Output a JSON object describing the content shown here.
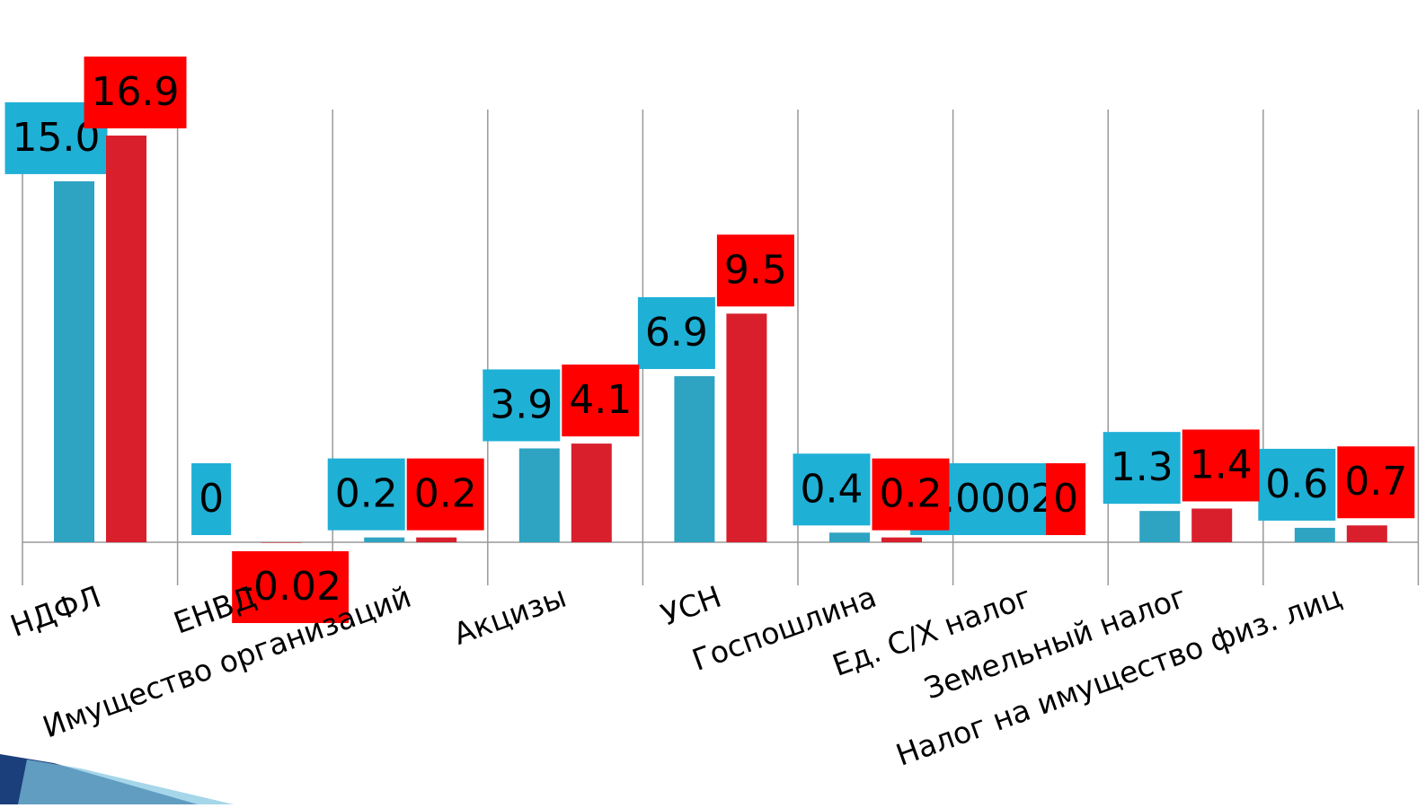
{
  "chart_data": {
    "type": "bar",
    "categories": [
      "НДФЛ",
      "ЕНВД",
      "Имущество организаций",
      "Акцизы",
      "УСН",
      "Госпошлина",
      "Ед. С/Х налог",
      "Земельный налог",
      "Налог на имущество физ. лиц"
    ],
    "series": [
      {
        "color": "#2ea3c2",
        "label_color": "#1fb0d6",
        "values": [
          15.0,
          0,
          0.2,
          3.9,
          6.9,
          0.4,
          0.0002,
          1.3,
          0.6
        ],
        "value_labels": [
          "15.0",
          "0",
          "0.2",
          "3.9",
          "6.9",
          "0.4",
          "0.0002",
          "1.3",
          "0.6"
        ]
      },
      {
        "color": "#d91f2c",
        "label_color": "#ff0000",
        "values": [
          16.9,
          -0.02,
          0.2,
          4.1,
          9.5,
          0.2,
          0,
          1.4,
          0.7
        ]
      }
    ]
  }
}
